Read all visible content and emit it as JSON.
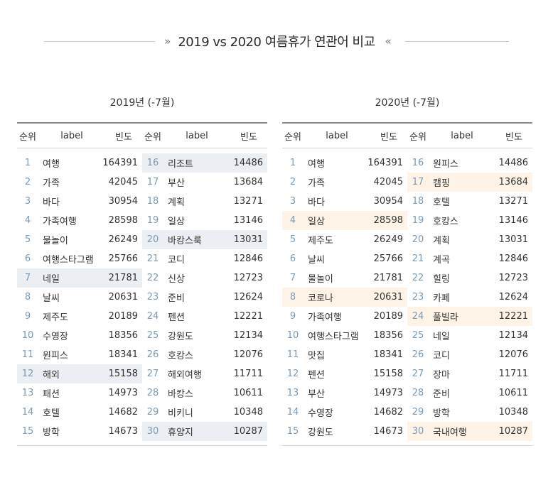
{
  "title": "2019 vs 2020 여름휴가 연관어 비교",
  "chev_left": "»",
  "chev_right": "«",
  "headers": {
    "rank": "순위",
    "label": "label",
    "freq": "빈도"
  },
  "left": {
    "title": "2019년 (-7월)",
    "rows": [
      [
        {
          "rank": "1",
          "label": "여행",
          "freq": "164391",
          "hl": false
        },
        {
          "rank": "16",
          "label": "리조트",
          "freq": "14486",
          "hl": true
        }
      ],
      [
        {
          "rank": "2",
          "label": "가족",
          "freq": "42045",
          "hl": false
        },
        {
          "rank": "17",
          "label": "부산",
          "freq": "13684",
          "hl": false
        }
      ],
      [
        {
          "rank": "3",
          "label": "바다",
          "freq": "30954",
          "hl": false
        },
        {
          "rank": "18",
          "label": "계획",
          "freq": "13271",
          "hl": false
        }
      ],
      [
        {
          "rank": "4",
          "label": "가족여행",
          "freq": "28598",
          "hl": false
        },
        {
          "rank": "19",
          "label": "일상",
          "freq": "13146",
          "hl": false
        }
      ],
      [
        {
          "rank": "5",
          "label": "물놀이",
          "freq": "26249",
          "hl": false
        },
        {
          "rank": "20",
          "label": "바캉스룩",
          "freq": "13031",
          "hl": true
        }
      ],
      [
        {
          "rank": "6",
          "label": "여행스타그램",
          "freq": "25766",
          "hl": false
        },
        {
          "rank": "21",
          "label": "코디",
          "freq": "12846",
          "hl": false
        }
      ],
      [
        {
          "rank": "7",
          "label": "네일",
          "freq": "21781",
          "hl": true
        },
        {
          "rank": "22",
          "label": "신상",
          "freq": "12723",
          "hl": false
        }
      ],
      [
        {
          "rank": "8",
          "label": "날씨",
          "freq": "20631",
          "hl": false
        },
        {
          "rank": "23",
          "label": "준비",
          "freq": "12624",
          "hl": false
        }
      ],
      [
        {
          "rank": "9",
          "label": "제주도",
          "freq": "20189",
          "hl": false
        },
        {
          "rank": "24",
          "label": "펜션",
          "freq": "12221",
          "hl": false
        }
      ],
      [
        {
          "rank": "10",
          "label": "수영장",
          "freq": "18356",
          "hl": false
        },
        {
          "rank": "25",
          "label": "강원도",
          "freq": "12134",
          "hl": false
        }
      ],
      [
        {
          "rank": "11",
          "label": "원피스",
          "freq": "18341",
          "hl": false
        },
        {
          "rank": "26",
          "label": "호캉스",
          "freq": "12076",
          "hl": false
        }
      ],
      [
        {
          "rank": "12",
          "label": "해외",
          "freq": "15158",
          "hl": true
        },
        {
          "rank": "27",
          "label": "해외여행",
          "freq": "11711",
          "hl": false
        }
      ],
      [
        {
          "rank": "13",
          "label": "패션",
          "freq": "14973",
          "hl": false
        },
        {
          "rank": "28",
          "label": "바캉스",
          "freq": "10611",
          "hl": false
        }
      ],
      [
        {
          "rank": "14",
          "label": "호텔",
          "freq": "14682",
          "hl": false
        },
        {
          "rank": "29",
          "label": "비키니",
          "freq": "10348",
          "hl": false
        }
      ],
      [
        {
          "rank": "15",
          "label": "방학",
          "freq": "14673",
          "hl": false
        },
        {
          "rank": "30",
          "label": "휴양지",
          "freq": "10287",
          "hl": true
        }
      ]
    ]
  },
  "right": {
    "title": "2020년 (-7월)",
    "rows": [
      [
        {
          "rank": "1",
          "label": "여행",
          "freq": "164391",
          "hl": false
        },
        {
          "rank": "16",
          "label": "원피스",
          "freq": "14486",
          "hl": false
        }
      ],
      [
        {
          "rank": "2",
          "label": "가족",
          "freq": "42045",
          "hl": false
        },
        {
          "rank": "17",
          "label": "캠핑",
          "freq": "13684",
          "hl": true
        }
      ],
      [
        {
          "rank": "3",
          "label": "바다",
          "freq": "30954",
          "hl": false
        },
        {
          "rank": "18",
          "label": "호텔",
          "freq": "13271",
          "hl": false
        }
      ],
      [
        {
          "rank": "4",
          "label": "일상",
          "freq": "28598",
          "hl": true
        },
        {
          "rank": "19",
          "label": "호캉스",
          "freq": "13146",
          "hl": false
        }
      ],
      [
        {
          "rank": "5",
          "label": "제주도",
          "freq": "26249",
          "hl": false
        },
        {
          "rank": "20",
          "label": "계획",
          "freq": "13031",
          "hl": false
        }
      ],
      [
        {
          "rank": "6",
          "label": "날씨",
          "freq": "25766",
          "hl": false
        },
        {
          "rank": "21",
          "label": "계곡",
          "freq": "12846",
          "hl": false
        }
      ],
      [
        {
          "rank": "7",
          "label": "물놀이",
          "freq": "21781",
          "hl": false
        },
        {
          "rank": "22",
          "label": "힐링",
          "freq": "12723",
          "hl": false
        }
      ],
      [
        {
          "rank": "8",
          "label": "코로나",
          "freq": "20631",
          "hl": true
        },
        {
          "rank": "23",
          "label": "카페",
          "freq": "12624",
          "hl": false
        }
      ],
      [
        {
          "rank": "9",
          "label": "가족여행",
          "freq": "20189",
          "hl": false
        },
        {
          "rank": "24",
          "label": "풀빌라",
          "freq": "12221",
          "hl": true
        }
      ],
      [
        {
          "rank": "10",
          "label": "여행스타그램",
          "freq": "18356",
          "hl": false
        },
        {
          "rank": "25",
          "label": "네일",
          "freq": "12134",
          "hl": false
        }
      ],
      [
        {
          "rank": "11",
          "label": "맛집",
          "freq": "18341",
          "hl": false
        },
        {
          "rank": "26",
          "label": "코디",
          "freq": "12076",
          "hl": false
        }
      ],
      [
        {
          "rank": "12",
          "label": "펜션",
          "freq": "15158",
          "hl": false
        },
        {
          "rank": "27",
          "label": "장마",
          "freq": "11711",
          "hl": false
        }
      ],
      [
        {
          "rank": "13",
          "label": "부산",
          "freq": "14973",
          "hl": false
        },
        {
          "rank": "28",
          "label": "준비",
          "freq": "10611",
          "hl": false
        }
      ],
      [
        {
          "rank": "14",
          "label": "수영장",
          "freq": "14682",
          "hl": false
        },
        {
          "rank": "29",
          "label": "방학",
          "freq": "10348",
          "hl": false
        }
      ],
      [
        {
          "rank": "15",
          "label": "강원도",
          "freq": "14673",
          "hl": false
        },
        {
          "rank": "30",
          "label": "국내여행",
          "freq": "10287",
          "hl": true
        }
      ]
    ]
  }
}
